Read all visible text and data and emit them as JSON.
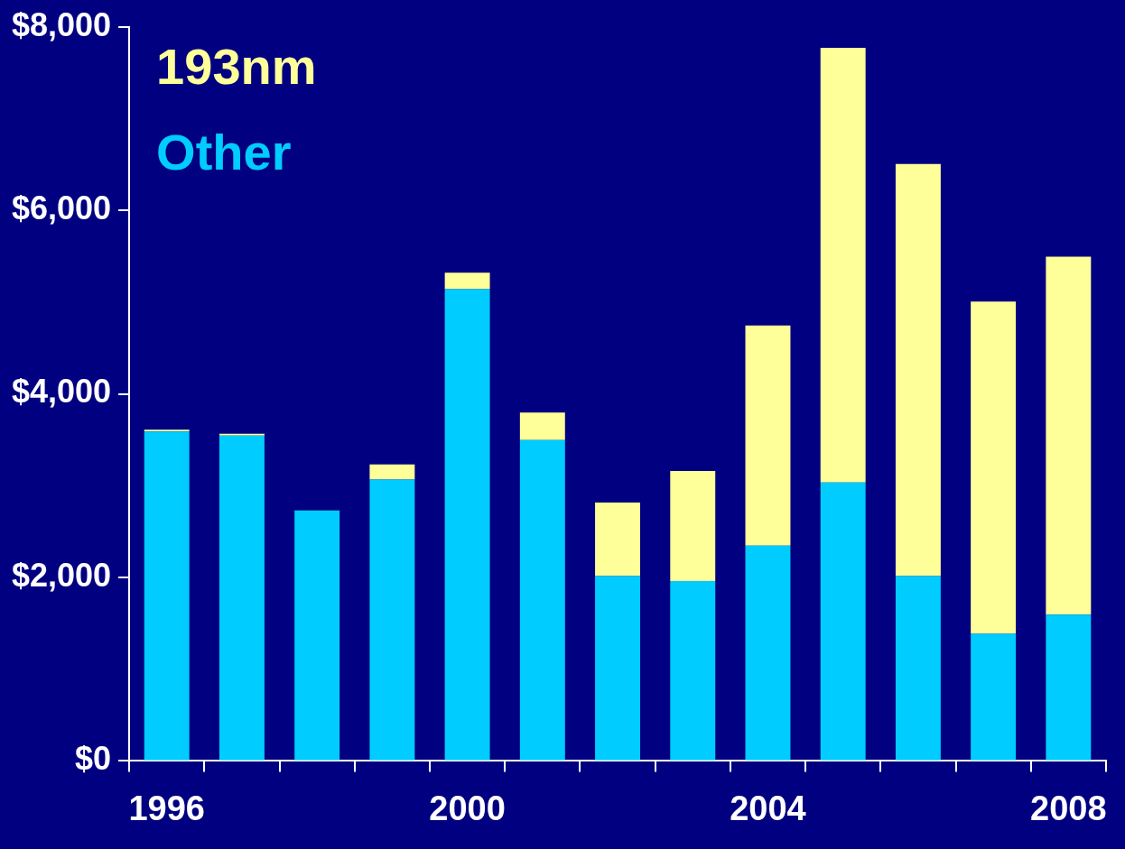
{
  "chart_data": {
    "type": "bar",
    "stacked": true,
    "categories": [
      "1996",
      null,
      null,
      null,
      "2000",
      null,
      null,
      null,
      "2004",
      null,
      null,
      null,
      "2008"
    ],
    "series": [
      {
        "name": "Other",
        "color": "#00ccff",
        "values": [
          3590,
          3545,
          2730,
          3065,
          5140,
          3495,
          2015,
          1960,
          2345,
          3035,
          2015,
          1385,
          1595
        ]
      },
      {
        "name": "193nm",
        "color": "#ffff99",
        "values": [
          20,
          20,
          0,
          165,
          180,
          300,
          800,
          1200,
          2400,
          4735,
          4490,
          3620,
          3900
        ]
      }
    ],
    "ylim": [
      0,
      8000
    ],
    "yticks": [
      {
        "value": 0,
        "label": "$0"
      },
      {
        "value": 2000,
        "label": "$2,000"
      },
      {
        "value": 4000,
        "label": "$4,000"
      },
      {
        "value": 6000,
        "label": "$6,000"
      },
      {
        "value": 8000,
        "label": "$8,000"
      }
    ],
    "grid": false,
    "legend": "top left"
  }
}
